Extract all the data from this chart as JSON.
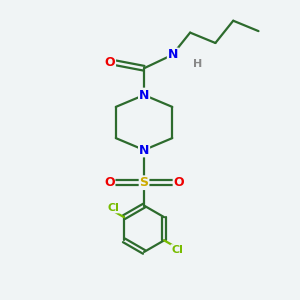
{
  "background_color": "#f0f4f5",
  "bond_color": "#2d6b2d",
  "atom_colors": {
    "N": "#0000ee",
    "O": "#ee0000",
    "S": "#ccaa00",
    "Cl": "#77bb00",
    "H": "#888888",
    "C": "#2d6b2d"
  },
  "figsize": [
    3.0,
    3.0
  ],
  "dpi": 100
}
